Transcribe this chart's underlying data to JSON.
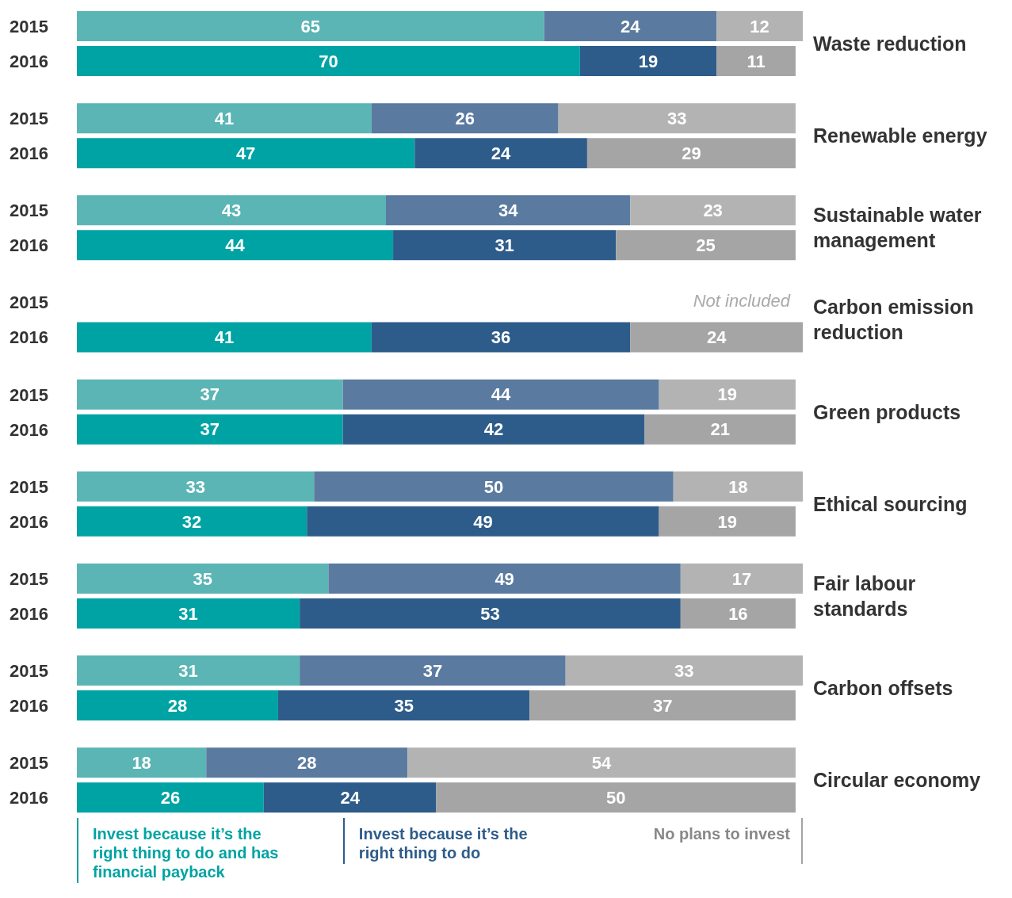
{
  "chart_data": {
    "type": "bar",
    "orientation": "horizontal",
    "stacked": true,
    "data_labels": true,
    "legend": "bottom",
    "categories": [
      "2015",
      "2016",
      "2015",
      "2016",
      "2015",
      "2016",
      "2015",
      "2016",
      "2015",
      "2016",
      "2015",
      "2016",
      "2015",
      "2016",
      "2015",
      "2016",
      "2015",
      "2016"
    ],
    "series": [
      {
        "name": "Invest because it’s the right thing to do and has financial payback",
        "color": "#00a3a3",
        "colors": [
          "#5bb5b5",
          "#00a3a3",
          "#5bb5b5",
          "#00a3a3",
          "#5bb5b5",
          "#00a3a3",
          "#5bb5b5",
          "#00a3a3",
          "#5bb5b5",
          "#00a3a3",
          "#5bb5b5",
          "#00a3a3",
          "#5bb5b5",
          "#00a3a3",
          "#5bb5b5",
          "#00a3a3",
          "#5bb5b5",
          "#00a3a3"
        ],
        "values": [
          65,
          70,
          41,
          47,
          43,
          44,
          null,
          41,
          37,
          37,
          33,
          32,
          35,
          31,
          31,
          28,
          18,
          26
        ]
      },
      {
        "name": "Invest because it’s the right thing to do",
        "color": "#2e5c8a",
        "colors": [
          "#5a7aa0",
          "#2e5c8a",
          "#5a7aa0",
          "#2e5c8a",
          "#5a7aa0",
          "#2e5c8a",
          "#5a7aa0",
          "#2e5c8a",
          "#5a7aa0",
          "#2e5c8a",
          "#5a7aa0",
          "#2e5c8a",
          "#5a7aa0",
          "#2e5c8a",
          "#5a7aa0",
          "#2e5c8a",
          "#5a7aa0",
          "#2e5c8a"
        ],
        "values": [
          24,
          19,
          26,
          24,
          34,
          31,
          null,
          36,
          44,
          42,
          50,
          49,
          49,
          53,
          37,
          35,
          28,
          24
        ]
      },
      {
        "name": "No plans to invest",
        "color": "#a5a5a5",
        "colors": [
          "#b3b3b3",
          "#a5a5a5",
          "#b3b3b3",
          "#a5a5a5",
          "#b3b3b3",
          "#a5a5a5",
          "#b3b3b3",
          "#a5a5a5",
          "#b3b3b3",
          "#a5a5a5",
          "#b3b3b3",
          "#a5a5a5",
          "#b3b3b3",
          "#a5a5a5",
          "#b3b3b3",
          "#a5a5a5",
          "#b3b3b3",
          "#a5a5a5"
        ],
        "values": [
          12,
          11,
          33,
          29,
          23,
          25,
          null,
          24,
          19,
          21,
          18,
          19,
          17,
          16,
          33,
          37,
          54,
          50
        ]
      }
    ],
    "annotations": [
      "Waste reduction",
      "Renewable energy",
      "Sustainable water management",
      "Carbon emission reduction",
      "Green products",
      "Ethical sourcing",
      "Fair labour standards",
      "Carbon offsets",
      "Circular economy",
      "Not included"
    ]
  }
}
